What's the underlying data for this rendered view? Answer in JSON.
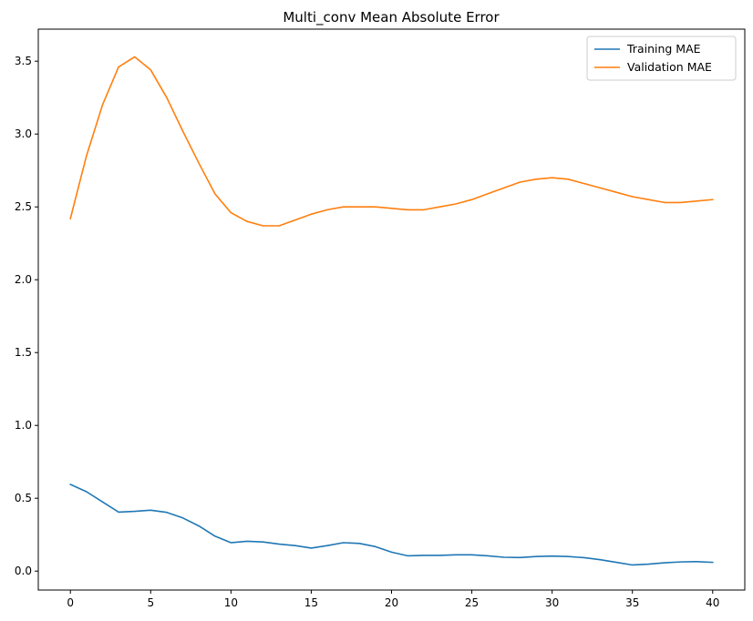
{
  "chart_data": {
    "type": "line",
    "title": "Multi_conv Mean Absolute Error",
    "xlabel": "",
    "ylabel": "",
    "xlim": [
      -2,
      42
    ],
    "ylim": [
      -0.13,
      3.72
    ],
    "xticks": [
      0,
      5,
      10,
      15,
      20,
      25,
      30,
      35,
      40
    ],
    "xtick_labels": [
      "0",
      "5",
      "10",
      "15",
      "20",
      "25",
      "30",
      "35",
      "40"
    ],
    "yticks": [
      0.0,
      0.5,
      1.0,
      1.5,
      2.0,
      2.5,
      3.0,
      3.5
    ],
    "ytick_labels": [
      "0.0",
      "0.5",
      "1.0",
      "1.5",
      "2.0",
      "2.5",
      "3.0",
      "3.5"
    ],
    "grid": false,
    "legend_position": "top-right",
    "series": [
      {
        "name": "Training MAE",
        "color": "#1f77b4",
        "x": [
          0,
          1,
          2,
          3,
          4,
          5,
          6,
          7,
          8,
          9,
          10,
          11,
          12,
          13,
          14,
          15,
          16,
          17,
          18,
          19,
          20,
          21,
          22,
          23,
          24,
          25,
          26,
          27,
          28,
          29,
          30,
          31,
          32,
          33,
          34,
          35,
          36,
          37,
          38,
          39,
          40
        ],
        "values": [
          0.595,
          0.545,
          0.475,
          0.405,
          0.41,
          0.418,
          0.403,
          0.365,
          0.31,
          0.24,
          0.195,
          0.205,
          0.2,
          0.185,
          0.175,
          0.158,
          0.175,
          0.195,
          0.19,
          0.168,
          0.13,
          0.105,
          0.108,
          0.108,
          0.112,
          0.112,
          0.105,
          0.095,
          0.093,
          0.1,
          0.103,
          0.1,
          0.092,
          0.078,
          0.06,
          0.042,
          0.048,
          0.057,
          0.063,
          0.065,
          0.06
        ]
      },
      {
        "name": "Validation MAE",
        "color": "#ff7f0e",
        "x": [
          0,
          1,
          2,
          3,
          4,
          5,
          6,
          7,
          8,
          9,
          10,
          11,
          12,
          13,
          14,
          15,
          16,
          17,
          18,
          19,
          20,
          21,
          22,
          23,
          24,
          25,
          26,
          27,
          28,
          29,
          30,
          31,
          32,
          33,
          34,
          35,
          36,
          37,
          38,
          39,
          40
        ],
        "values": [
          2.42,
          2.85,
          3.2,
          3.46,
          3.53,
          3.44,
          3.25,
          3.02,
          2.8,
          2.59,
          2.46,
          2.4,
          2.37,
          2.37,
          2.41,
          2.45,
          2.48,
          2.5,
          2.5,
          2.5,
          2.49,
          2.48,
          2.48,
          2.5,
          2.52,
          2.55,
          2.59,
          2.63,
          2.67,
          2.69,
          2.7,
          2.69,
          2.66,
          2.63,
          2.6,
          2.57,
          2.55,
          2.53,
          2.53,
          2.54,
          2.55
        ]
      }
    ]
  }
}
